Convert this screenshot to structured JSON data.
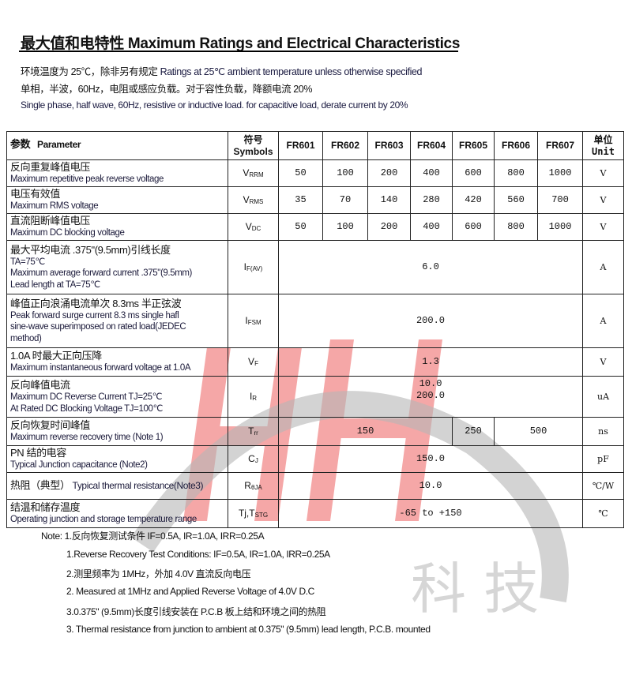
{
  "title": {
    "cn": "最大值和电特性",
    "en": "Maximum Ratings and Electrical Characteristics"
  },
  "intro": [
    {
      "cn": "环境温度为 25℃，除非另有规定",
      "en": "Ratings at 25℃ ambient temperature unless otherwise specified"
    },
    {
      "cn": "单相，半波，60Hz，电阻或感应负载。对于容性负载，降额电流 20%",
      "en": ""
    },
    {
      "cn": "",
      "en": "Single phase, half wave, 60Hz, resistive or inductive load. for capacitive load, derate current by 20%"
    }
  ],
  "table": {
    "header": {
      "param_cn": "参数",
      "param_en": "Parameter",
      "sym_cn": "符号",
      "sym_en": "Symbols",
      "parts": [
        "FR601",
        "FR602",
        "FR603",
        "FR604",
        "FR605",
        "FR606",
        "FR607"
      ],
      "unit_cn": "单位",
      "unit_en": "Unit"
    },
    "rows": [
      {
        "cn": "反向重复峰值电压",
        "en": [
          "Maximum repetitive peak reverse voltage"
        ],
        "sym": "V",
        "sub": "RRM",
        "values": [
          "50",
          "100",
          "200",
          "400",
          "600",
          "800",
          "1000"
        ],
        "unit": "V"
      },
      {
        "cn": "电压有效值",
        "en": [
          "Maximum RMS voltage"
        ],
        "sym": "V",
        "sub": "RMS",
        "values": [
          "35",
          "70",
          "140",
          "280",
          "420",
          "560",
          "700"
        ],
        "unit": "V"
      },
      {
        "cn": "直流阻断峰值电压",
        "en": [
          "Maximum DC blocking voltage"
        ],
        "sym": "V",
        "sub": "DC",
        "values": [
          "50",
          "100",
          "200",
          "400",
          "600",
          "800",
          "1000"
        ],
        "unit": "V"
      },
      {
        "cn": "最大平均电流 .375\"(9.5mm)引线长度",
        "en": [
          "TA=75℃",
          "Maximum average forward current .375\"(9.5mm)",
          "Lead length at TA=75℃"
        ],
        "sym": "I",
        "sub": "F(AV)",
        "value": "6.0",
        "unit": "A"
      },
      {
        "cn": "峰值正向浪涌电流单次 8.3ms 半正弦波",
        "en": [
          "Peak forward surge current 8.3 ms single hafl",
          "sine-wave superimposed on rated load(JEDEC",
          "method)"
        ],
        "sym": "I",
        "sub": "FSM",
        "value": "200.0",
        "unit": "A"
      },
      {
        "cn": "1.0A 时最大正向压降",
        "en": [
          "Maximum instantaneous forward voltage at 1.0A"
        ],
        "sym": "V",
        "sub": "F",
        "value": "1.3",
        "unit": "V"
      },
      {
        "cn": "反向峰值电流",
        "en": [
          "Maximum DC Reverse Current    TJ=25℃",
          "At Rated DC Blocking Voltage    TJ=100℃"
        ],
        "sym": "I",
        "sub": "R",
        "value": "10.0",
        "value2": "200.0",
        "unit": "uA"
      },
      {
        "cn": "反向恢复时间峰值",
        "en": [
          "Maximum reverse recovery time (Note 1)"
        ],
        "sym": "T",
        "sub": "rr",
        "values": [
          "150",
          "250",
          "500"
        ],
        "unit": "ns"
      },
      {
        "cn": "PN 结的电容",
        "en": [
          "Typical Junction capacitance (Note2)"
        ],
        "sym": "C",
        "sub": "J",
        "value": "150.0",
        "unit": "pF"
      },
      {
        "cn": "热阻（典型）",
        "en": [
          "Typical thermal resistance(Note3)"
        ],
        "sym": "R",
        "sub": "θJA",
        "value": "10.0",
        "unit": "℃/W"
      },
      {
        "cn": "结温和储存温度",
        "en": [
          "Operating junction and storage temperature range"
        ],
        "sym": "Tj,T",
        "sub": "STG",
        "value": "-65 to +150",
        "unit": "℃"
      }
    ]
  },
  "notes": [
    "Note: 1.反向恢复测试条件 IF=0.5A, IR=1.0A, IRR=0.25A",
    "1.Reverse Recovery Test Conditions: IF=0.5A, IR=1.0A, IRR=0.25A",
    "2.测里频率为 1MHz，外加 4.0V 直流反向电压",
    "2. Measured at 1MHz and Applied Reverse Voltage of 4.0V D.C",
    "3.0.375\" (9.5mm)长度引线安装在 P.C.B 板上结和环境之间的热阻",
    "3. Thermal resistance from junction to ambient at 0.375\" (9.5mm) lead length, P.C.B. mounted"
  ],
  "watermark": {
    "logo": "HH",
    "text": "科技",
    "colors": {
      "red": "#f08080",
      "gray": "#b0b0b0"
    }
  }
}
